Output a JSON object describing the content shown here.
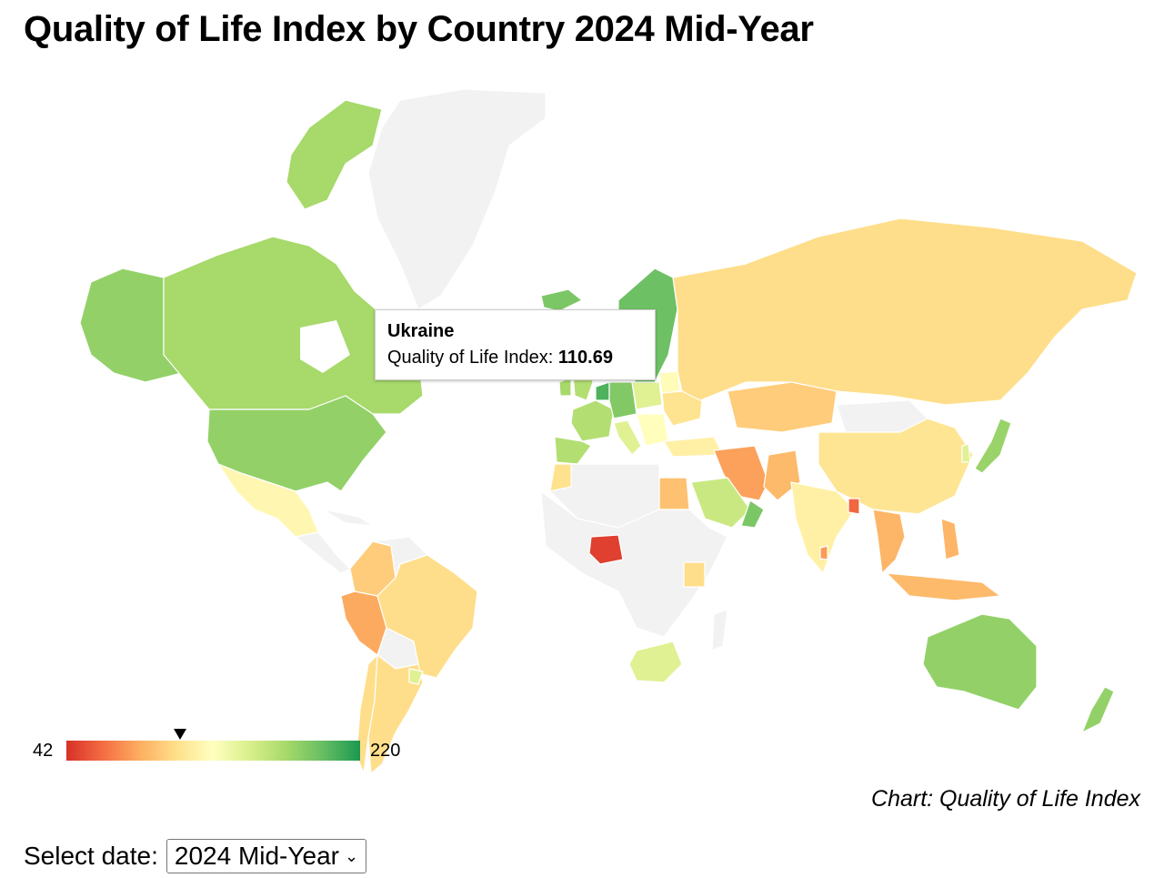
{
  "title": "Quality of Life Index by Country 2024 Mid-Year",
  "chart_data": {
    "type": "choropleth",
    "metric": "Quality of Life Index",
    "scale": {
      "min": 42,
      "max": 220
    },
    "hovered": {
      "country": "Ukraine",
      "value": 110.69
    },
    "countries": [
      {
        "name": "Canada",
        "value": 175
      },
      {
        "name": "United States",
        "value": 182
      },
      {
        "name": "Alaska (US)",
        "value": 182
      },
      {
        "name": "Greenland",
        "value": null
      },
      {
        "name": "Mexico",
        "value": 125
      },
      {
        "name": "Cuba",
        "value": null
      },
      {
        "name": "Central America",
        "value": null
      },
      {
        "name": "Colombia",
        "value": 100
      },
      {
        "name": "Venezuela",
        "value": null
      },
      {
        "name": "Peru",
        "value": 85
      },
      {
        "name": "Brazil",
        "value": 108
      },
      {
        "name": "Bolivia",
        "value": null
      },
      {
        "name": "Chile",
        "value": 108
      },
      {
        "name": "Argentina",
        "value": 108
      },
      {
        "name": "Uruguay",
        "value": 150
      },
      {
        "name": "Iceland",
        "value": 190
      },
      {
        "name": "Norway/Sweden/Finland",
        "value": 195
      },
      {
        "name": "United Kingdom",
        "value": 170
      },
      {
        "name": "Ireland",
        "value": 175
      },
      {
        "name": "Spain/Portugal",
        "value": 170
      },
      {
        "name": "France",
        "value": 170
      },
      {
        "name": "Germany",
        "value": 188
      },
      {
        "name": "Netherlands",
        "value": 205
      },
      {
        "name": "Poland",
        "value": 150
      },
      {
        "name": "Italy",
        "value": 150
      },
      {
        "name": "Balkans",
        "value": 130
      },
      {
        "name": "Ukraine",
        "value": 110.69
      },
      {
        "name": "Belarus",
        "value": 128
      },
      {
        "name": "Russia",
        "value": 108
      },
      {
        "name": "Turkey",
        "value": 120
      },
      {
        "name": "Kazakhstan",
        "value": 100
      },
      {
        "name": "Mongolia",
        "value": null
      },
      {
        "name": "China",
        "value": 112
      },
      {
        "name": "Japan",
        "value": 180
      },
      {
        "name": "South Korea",
        "value": 150
      },
      {
        "name": "India",
        "value": 120
      },
      {
        "name": "Pakistan",
        "value": 92
      },
      {
        "name": "Iran",
        "value": 82
      },
      {
        "name": "Saudi Arabia",
        "value": 160
      },
      {
        "name": "Oman",
        "value": 190
      },
      {
        "name": "Egypt",
        "value": 95
      },
      {
        "name": "Morocco",
        "value": 110
      },
      {
        "name": "Algeria/Libya",
        "value": null
      },
      {
        "name": "Nigeria",
        "value": 48
      },
      {
        "name": "Kenya",
        "value": 108
      },
      {
        "name": "Central Africa",
        "value": null
      },
      {
        "name": "South Africa",
        "value": 150
      },
      {
        "name": "Madagascar",
        "value": null
      },
      {
        "name": "Bangladesh",
        "value": 62
      },
      {
        "name": "Sri Lanka",
        "value": 80
      },
      {
        "name": "Southeast Asia",
        "value": 90
      },
      {
        "name": "Philippines",
        "value": 90
      },
      {
        "name": "Indonesia",
        "value": 92
      },
      {
        "name": "Australia",
        "value": 182
      },
      {
        "name": "New Zealand",
        "value": 182
      }
    ]
  },
  "tooltip": {
    "name": "Ukraine",
    "label": "Quality of Life Index:",
    "value": "110.69"
  },
  "legend": {
    "min_label": "42",
    "max_label": "220"
  },
  "source": "Chart: Quality of Life Index",
  "date_selector": {
    "label": "Select date:",
    "selected": "2024 Mid-Year"
  },
  "colors": {
    "no_data": "#f2f2f2",
    "hover_stroke": "#999999"
  }
}
